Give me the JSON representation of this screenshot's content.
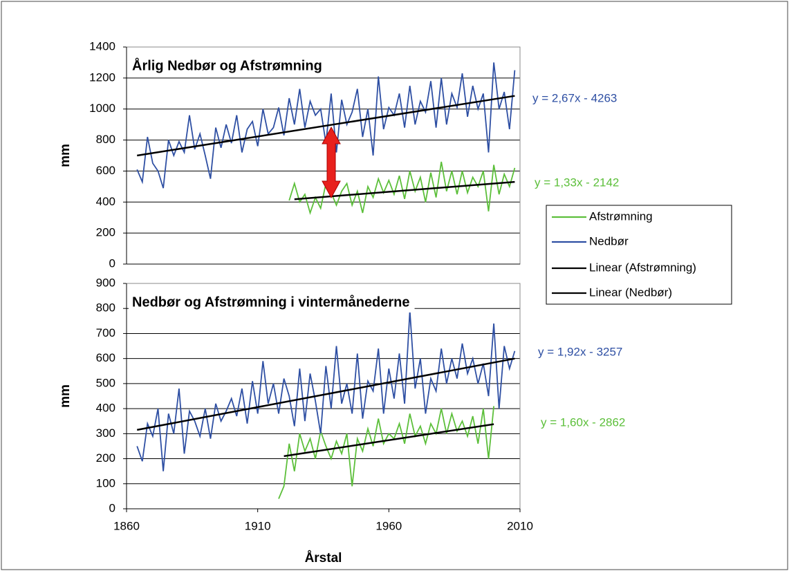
{
  "chart_data": [
    {
      "type": "line",
      "title": "Årlig Nedbør og Afstrømning",
      "y_label": "mm",
      "xlim": [
        1860,
        2010
      ],
      "ylim": [
        0,
        1400
      ],
      "yticks": [
        0,
        200,
        400,
        600,
        800,
        1000,
        1200,
        1400
      ],
      "grid": true,
      "series": [
        {
          "name": "Afstrømning",
          "color": "#5cbf3a",
          "x": [
            1922,
            1924,
            1926,
            1928,
            1930,
            1932,
            1934,
            1936,
            1938,
            1940,
            1942,
            1944,
            1946,
            1948,
            1950,
            1952,
            1954,
            1956,
            1958,
            1960,
            1962,
            1964,
            1966,
            1968,
            1970,
            1972,
            1974,
            1976,
            1978,
            1980,
            1982,
            1984,
            1986,
            1988,
            1990,
            1992,
            1994,
            1996,
            1998,
            2000,
            2002,
            2004,
            2006,
            2008
          ],
          "values": [
            410,
            520,
            400,
            450,
            330,
            430,
            360,
            520,
            460,
            380,
            470,
            520,
            380,
            470,
            330,
            500,
            430,
            550,
            460,
            540,
            450,
            570,
            420,
            600,
            470,
            560,
            400,
            590,
            430,
            660,
            470,
            600,
            450,
            600,
            460,
            560,
            500,
            600,
            340,
            640,
            450,
            580,
            500,
            620
          ]
        },
        {
          "name": "Nedbør",
          "color": "#2e4fa3",
          "x": [
            1864,
            1866,
            1868,
            1870,
            1872,
            1874,
            1876,
            1878,
            1880,
            1882,
            1884,
            1886,
            1888,
            1890,
            1892,
            1894,
            1896,
            1898,
            1900,
            1902,
            1904,
            1906,
            1908,
            1910,
            1912,
            1914,
            1916,
            1918,
            1920,
            1922,
            1924,
            1926,
            1928,
            1930,
            1932,
            1934,
            1936,
            1938,
            1940,
            1942,
            1944,
            1946,
            1948,
            1950,
            1952,
            1954,
            1956,
            1958,
            1960,
            1962,
            1964,
            1966,
            1968,
            1970,
            1972,
            1974,
            1976,
            1978,
            1980,
            1982,
            1984,
            1986,
            1988,
            1990,
            1992,
            1994,
            1996,
            1998,
            2000,
            2002,
            2004,
            2006,
            2008
          ],
          "values": [
            610,
            530,
            820,
            650,
            600,
            490,
            800,
            700,
            790,
            720,
            960,
            740,
            840,
            700,
            550,
            880,
            750,
            900,
            780,
            960,
            720,
            870,
            920,
            760,
            1000,
            840,
            880,
            1010,
            830,
            1070,
            900,
            1130,
            880,
            1050,
            960,
            1000,
            780,
            1100,
            720,
            1060,
            900,
            980,
            1130,
            820,
            1000,
            700,
            1210,
            870,
            1010,
            960,
            1100,
            880,
            1150,
            900,
            1050,
            980,
            1180,
            880,
            1200,
            900,
            1100,
            1010,
            1230,
            950,
            1150,
            1000,
            1100,
            720,
            1300,
            1000,
            1110,
            870,
            1250
          ]
        },
        {
          "name": "Linear (Afstrømning)",
          "color": "#000000",
          "x": [
            1924,
            2008
          ],
          "values": [
            418,
            530
          ]
        },
        {
          "name": "Linear (Nedbør)",
          "color": "#000000",
          "x": [
            1864,
            2008
          ],
          "values": [
            700,
            1085
          ]
        }
      ],
      "annotations": [
        {
          "text": "y = 2,67x - 4263",
          "color": "#2e4fa3"
        },
        {
          "text": "y = 1,33x - 2142",
          "color": "#5cbf3a"
        }
      ]
    },
    {
      "type": "line",
      "title": "Nedbør og Afstrømning i vintermånederne",
      "y_label": "mm",
      "x_label": "Årstal",
      "xlim": [
        1860,
        2010
      ],
      "ylim": [
        0,
        900
      ],
      "xticks": [
        1860,
        1910,
        1960,
        2010
      ],
      "yticks": [
        0,
        100,
        200,
        300,
        400,
        500,
        600,
        700,
        800,
        900
      ],
      "grid": true,
      "series": [
        {
          "color": "#5cbf3a",
          "x": [
            1918,
            1920,
            1922,
            1924,
            1926,
            1928,
            1930,
            1932,
            1934,
            1936,
            1938,
            1940,
            1942,
            1944,
            1946,
            1948,
            1950,
            1952,
            1954,
            1956,
            1958,
            1960,
            1962,
            1964,
            1966,
            1968,
            1970,
            1972,
            1974,
            1976,
            1978,
            1980,
            1982,
            1984,
            1986,
            1988,
            1990,
            1992,
            1994,
            1996,
            1998,
            2000
          ],
          "values": [
            40,
            90,
            260,
            150,
            300,
            230,
            280,
            200,
            310,
            250,
            200,
            270,
            220,
            300,
            90,
            280,
            230,
            320,
            250,
            360,
            260,
            300,
            280,
            340,
            260,
            380,
            290,
            330,
            260,
            340,
            300,
            400,
            300,
            380,
            310,
            350,
            290,
            370,
            260,
            400,
            200,
            410
          ]
        },
        {
          "color": "#2e4fa3",
          "x": [
            1864,
            1866,
            1868,
            1870,
            1872,
            1874,
            1876,
            1878,
            1880,
            1882,
            1884,
            1886,
            1888,
            1890,
            1892,
            1894,
            1896,
            1898,
            1900,
            1902,
            1904,
            1906,
            1908,
            1910,
            1912,
            1914,
            1916,
            1918,
            1920,
            1922,
            1924,
            1926,
            1928,
            1930,
            1932,
            1934,
            1936,
            1938,
            1940,
            1942,
            1944,
            1946,
            1948,
            1950,
            1952,
            1954,
            1956,
            1958,
            1960,
            1962,
            1964,
            1966,
            1968,
            1970,
            1972,
            1974,
            1976,
            1978,
            1980,
            1982,
            1984,
            1986,
            1988,
            1990,
            1992,
            1994,
            1996,
            1998,
            2000,
            2002,
            2004,
            2006,
            2008
          ],
          "values": [
            250,
            190,
            340,
            290,
            400,
            150,
            380,
            300,
            480,
            220,
            390,
            350,
            290,
            400,
            280,
            420,
            350,
            390,
            440,
            370,
            480,
            340,
            510,
            380,
            590,
            420,
            500,
            380,
            520,
            450,
            330,
            560,
            350,
            540,
            430,
            300,
            570,
            400,
            650,
            420,
            500,
            380,
            620,
            360,
            510,
            470,
            640,
            380,
            560,
            440,
            620,
            420,
            790,
            480,
            600,
            380,
            520,
            470,
            640,
            500,
            600,
            520,
            660,
            540,
            600,
            500,
            580,
            450,
            740,
            400,
            650,
            560,
            630
          ]
        },
        {
          "color": "#000000",
          "x": [
            1920,
            2000
          ],
          "values": [
            210,
            338
          ]
        },
        {
          "color": "#000000",
          "x": [
            1864,
            2008
          ],
          "values": [
            315,
            600
          ]
        }
      ],
      "annotations": [
        {
          "text": "y = 1,92x - 3257",
          "color": "#2e4fa3"
        },
        {
          "text": "y = 1,60x - 2862",
          "color": "#5cbf3a"
        }
      ]
    }
  ]
}
